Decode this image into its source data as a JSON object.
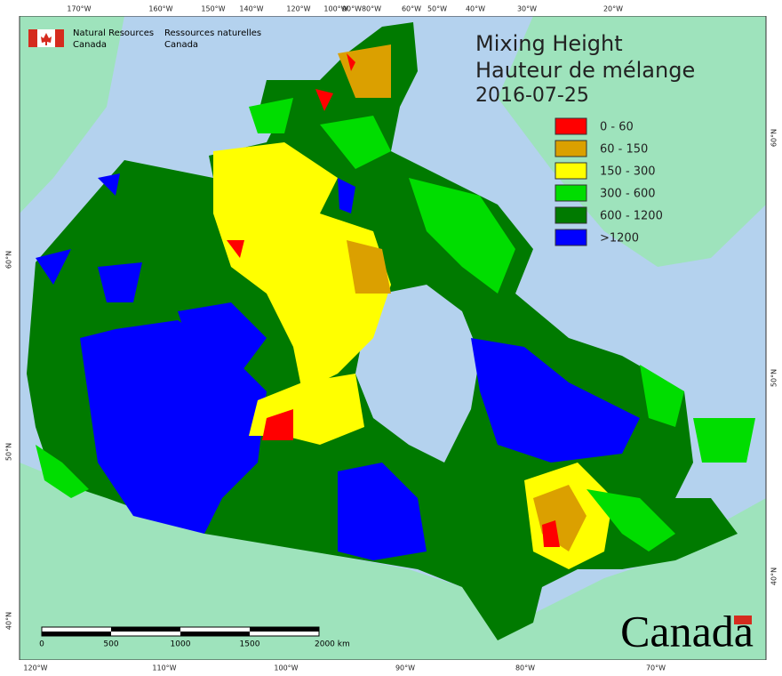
{
  "header": {
    "en_line1": "Natural Resources",
    "en_line2": "Canada",
    "fr_line1": "Ressources naturelles",
    "fr_line2": "Canada"
  },
  "title": {
    "line1": "Mixing Height",
    "line2": "Hauteur de mélange",
    "date": "2016-07-25"
  },
  "legend": {
    "items": [
      {
        "label": "0 - 60",
        "color": "#ff0000"
      },
      {
        "label": "60 - 150",
        "color": "#dba000"
      },
      {
        "label": "150 - 300",
        "color": "#ffff00"
      },
      {
        "label": "300 - 600",
        "color": "#00dd00"
      },
      {
        "label": "600 - 1200",
        "color": "#007a00"
      },
      {
        "label": ">1200",
        "color": "#0000ff"
      }
    ]
  },
  "graticule": {
    "top": [
      "170°W",
      "160°W",
      "150°W",
      "140°W",
      "120°W",
      "100°W",
      "90°W",
      "80°W",
      "60°W",
      "50°W",
      "40°W",
      "30°W",
      "20°W"
    ],
    "bottom": [
      "120°W",
      "110°W",
      "100°W",
      "90°W",
      "80°W",
      "70°W"
    ],
    "left": [
      "60°N",
      "50°N",
      "40°N"
    ],
    "right": [
      "60°N",
      "50°N",
      "40°N"
    ]
  },
  "scale_bar": {
    "labels": [
      "0",
      "500",
      "1000",
      "1500",
      "2000 km"
    ]
  },
  "wordmark": "Canada"
}
